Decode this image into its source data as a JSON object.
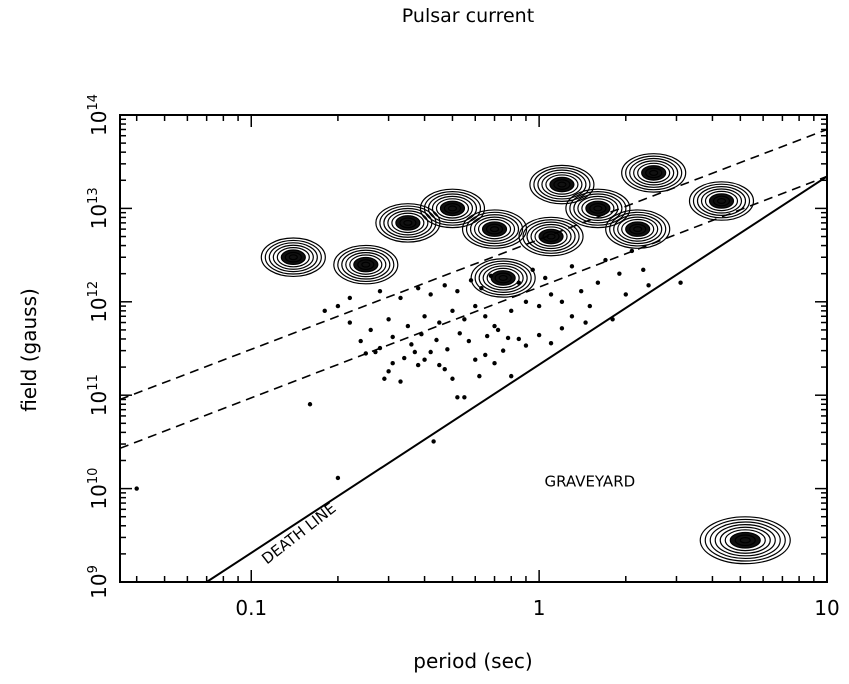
{
  "chart_data": {
    "type": "scatter",
    "title": "Pulsar current",
    "xlabel": "period (sec)",
    "ylabel": "field (gauss)",
    "x_scale": "log",
    "y_scale": "log",
    "xlim": [
      0.035,
      10
    ],
    "ylim": [
      1000000000.0,
      100000000000000.0
    ],
    "grid": false,
    "x_ticks": [
      {
        "value": 0.1,
        "label": "0.1"
      },
      {
        "value": 1,
        "label": "1"
      },
      {
        "value": 10,
        "label": "10"
      }
    ],
    "y_ticks": [
      {
        "value": 1000000000.0,
        "base": "10",
        "exp": "9"
      },
      {
        "value": 10000000000.0,
        "base": "10",
        "exp": "10"
      },
      {
        "value": 100000000000.0,
        "base": "10",
        "exp": "11"
      },
      {
        "value": 1000000000000.0,
        "base": "10",
        "exp": "12"
      },
      {
        "value": 10000000000000.0,
        "base": "10",
        "exp": "13"
      },
      {
        "value": 100000000000000.0,
        "base": "10",
        "exp": "14"
      }
    ],
    "lines": [
      {
        "style": "solid",
        "points": [
          [
            0.07,
            1000000000.0
          ],
          [
            10,
            22000000000000.0
          ]
        ]
      },
      {
        "style": "dashed",
        "points": [
          [
            0.035,
            90000000000.0
          ],
          [
            10,
            70000000000000.0
          ]
        ]
      },
      {
        "style": "dashed",
        "points": [
          [
            0.035,
            27000000000.0
          ],
          [
            10,
            22000000000000.0
          ]
        ]
      }
    ],
    "annotations": [
      {
        "text": "DEATH LINE",
        "x": 0.15,
        "y": 3000000000.0,
        "rotate": -38
      },
      {
        "text": "GRAVEYARD",
        "x": 1.5,
        "y": 10500000000.0,
        "rotate": 0
      }
    ],
    "density_peaks": [
      {
        "x": 0.14,
        "y": 3000000000000.0
      },
      {
        "x": 0.25,
        "y": 2500000000000.0
      },
      {
        "x": 0.35,
        "y": 7000000000000.0
      },
      {
        "x": 0.5,
        "y": 10000000000000.0
      },
      {
        "x": 0.7,
        "y": 6000000000000.0
      },
      {
        "x": 0.75,
        "y": 1800000000000.0
      },
      {
        "x": 1.2,
        "y": 18000000000000.0
      },
      {
        "x": 1.6,
        "y": 10000000000000.0
      },
      {
        "x": 2.5,
        "y": 24000000000000.0
      },
      {
        "x": 4.3,
        "y": 12000000000000.0
      },
      {
        "x": 2.2,
        "y": 6000000000000.0
      },
      {
        "x": 1.1,
        "y": 5000000000000.0
      },
      {
        "x": 5.2,
        "y": 2800000000.0
      }
    ],
    "points": [
      [
        0.04,
        10000000000.0
      ],
      [
        0.16,
        80000000000.0
      ],
      [
        0.2,
        13000000000.0
      ],
      [
        0.43,
        32000000000.0
      ],
      [
        0.25,
        280000000000.0
      ],
      [
        0.27,
        290000000000.0
      ],
      [
        0.28,
        320000000000.0
      ],
      [
        0.3,
        180000000000.0
      ],
      [
        0.31,
        220000000000.0
      ],
      [
        0.34,
        250000000000.0
      ],
      [
        0.37,
        290000000000.0
      ],
      [
        0.38,
        210000000000.0
      ],
      [
        0.4,
        240000000000.0
      ],
      [
        0.42,
        290000000000.0
      ],
      [
        0.45,
        210000000000.0
      ],
      [
        0.47,
        190000000000.0
      ],
      [
        0.5,
        150000000000.0
      ],
      [
        0.52,
        95000000000.0
      ],
      [
        0.55,
        95000000000.0
      ],
      [
        0.48,
        310000000000.0
      ],
      [
        0.6,
        240000000000.0
      ],
      [
        0.65,
        270000000000.0
      ],
      [
        0.62,
        160000000000.0
      ],
      [
        0.7,
        220000000000.0
      ],
      [
        0.75,
        300000000000.0
      ],
      [
        0.8,
        160000000000.0
      ],
      [
        0.85,
        400000000000.0
      ],
      [
        0.9,
        340000000000.0
      ],
      [
        1.0,
        440000000000.0
      ],
      [
        1.1,
        360000000000.0
      ],
      [
        0.33,
        140000000000.0
      ],
      [
        0.29,
        150000000000.0
      ],
      [
        0.36,
        350000000000.0
      ],
      [
        0.57,
        380000000000.0
      ],
      [
        1.8,
        650000000000.0
      ],
      [
        3.1,
        1600000000000.0
      ],
      [
        2.4,
        1500000000000.0
      ],
      [
        2.0,
        1200000000000.0
      ],
      [
        1.5,
        900000000000.0
      ],
      [
        1.3,
        700000000000.0
      ],
      [
        0.18,
        800000000000.0
      ],
      [
        0.2,
        900000000000.0
      ],
      [
        0.22,
        600000000000.0
      ],
      [
        0.26,
        500000000000.0
      ],
      [
        0.3,
        650000000000.0
      ],
      [
        0.35,
        550000000000.0
      ],
      [
        0.4,
        700000000000.0
      ],
      [
        0.45,
        600000000000.0
      ],
      [
        0.5,
        800000000000.0
      ],
      [
        0.55,
        650000000000.0
      ],
      [
        0.6,
        900000000000.0
      ],
      [
        0.65,
        700000000000.0
      ],
      [
        0.7,
        550000000000.0
      ],
      [
        0.8,
        800000000000.0
      ],
      [
        0.9,
        1000000000000.0
      ],
      [
        1.0,
        900000000000.0
      ],
      [
        1.1,
        1200000000000.0
      ],
      [
        1.2,
        1000000000000.0
      ],
      [
        1.4,
        1300000000000.0
      ],
      [
        1.6,
        1600000000000.0
      ],
      [
        1.9,
        2000000000000.0
      ],
      [
        2.3,
        2200000000000.0
      ],
      [
        0.22,
        1100000000000.0
      ],
      [
        0.28,
        1300000000000.0
      ],
      [
        0.33,
        1100000000000.0
      ],
      [
        0.38,
        1400000000000.0
      ],
      [
        0.42,
        1200000000000.0
      ],
      [
        0.47,
        1500000000000.0
      ],
      [
        0.52,
        1300000000000.0
      ],
      [
        0.58,
        1700000000000.0
      ],
      [
        0.63,
        1400000000000.0
      ],
      [
        0.68,
        1900000000000.0
      ],
      [
        0.85,
        1600000000000.0
      ],
      [
        0.95,
        2200000000000.0
      ],
      [
        1.05,
        1800000000000.0
      ],
      [
        1.3,
        2400000000000.0
      ],
      [
        1.7,
        2800000000000.0
      ],
      [
        2.1,
        3500000000000.0
      ],
      [
        0.24,
        380000000000.0
      ],
      [
        0.31,
        420000000000.0
      ],
      [
        0.39,
        450000000000.0
      ],
      [
        0.44,
        390000000000.0
      ],
      [
        0.53,
        460000000000.0
      ],
      [
        0.66,
        430000000000.0
      ],
      [
        0.72,
        500000000000.0
      ],
      [
        0.78,
        410000000000.0
      ],
      [
        1.2,
        520000000000.0
      ],
      [
        1.45,
        600000000000.0
      ]
    ]
  }
}
